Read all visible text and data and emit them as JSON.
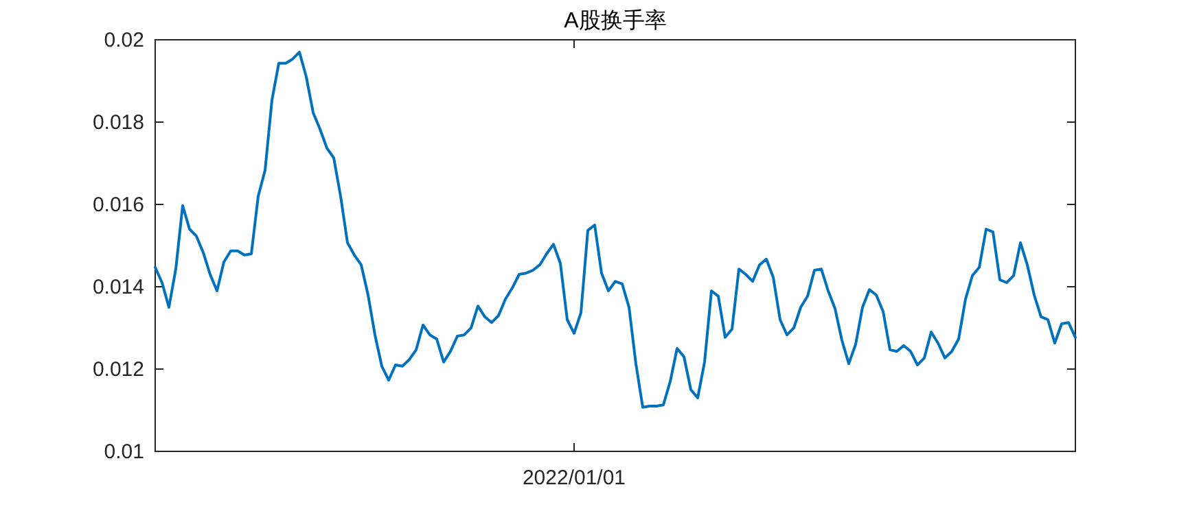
{
  "chart_data": {
    "type": "line",
    "title": "A股换手率",
    "categories": [
      null,
      null,
      null,
      null,
      null,
      null,
      null,
      null,
      null,
      null,
      null,
      null,
      null,
      null,
      null,
      null,
      null,
      null,
      null,
      null,
      null,
      null,
      null,
      null,
      null,
      null,
      null,
      null,
      null,
      null,
      null,
      null,
      null,
      null,
      null,
      null,
      null,
      null,
      null,
      null,
      null,
      null,
      null,
      null,
      null,
      null,
      null,
      null,
      null,
      null,
      null,
      null,
      null,
      null,
      null,
      null,
      null,
      null,
      null,
      null,
      null,
      "2022/01/01",
      null,
      null,
      null,
      null,
      null,
      null,
      null,
      null,
      null,
      null,
      null,
      null,
      null,
      null,
      null,
      null,
      null,
      null,
      null,
      null,
      null,
      null,
      null,
      null,
      null,
      null,
      null,
      null,
      null,
      null,
      null,
      null,
      null,
      null,
      null,
      null,
      null,
      null,
      null,
      null,
      null,
      null,
      null,
      null,
      null,
      null,
      null,
      null,
      null,
      null,
      null,
      null,
      null,
      null,
      null,
      null,
      null,
      null,
      null,
      null,
      null,
      null,
      null,
      null,
      null,
      null,
      null,
      null,
      null,
      null,
      null,
      null,
      null
    ],
    "series": [
      {
        "color": "#0072bd",
        "values": [
          0.01447,
          0.0141,
          0.0135,
          0.01443,
          0.01597,
          0.0154,
          0.01523,
          0.01483,
          0.0143,
          0.0139,
          0.0146,
          0.01487,
          0.01487,
          0.01477,
          0.0148,
          0.0162,
          0.01683,
          0.01853,
          0.01943,
          0.01943,
          0.01953,
          0.0197,
          0.0191,
          0.01823,
          0.01783,
          0.01737,
          0.01713,
          0.0162,
          0.01507,
          0.01477,
          0.01453,
          0.0138,
          0.01283,
          0.01207,
          0.01173,
          0.0121,
          0.01207,
          0.01223,
          0.01247,
          0.01307,
          0.01283,
          0.01273,
          0.01217,
          0.01243,
          0.0128,
          0.01283,
          0.013,
          0.01353,
          0.01327,
          0.01313,
          0.0133,
          0.0137,
          0.01397,
          0.0143,
          0.01433,
          0.0144,
          0.01453,
          0.0148,
          0.01503,
          0.01457,
          0.0132,
          0.01287,
          0.01337,
          0.01537,
          0.0155,
          0.01433,
          0.0139,
          0.01413,
          0.01407,
          0.0135,
          0.01213,
          0.01107,
          0.0111,
          0.0111,
          0.01113,
          0.0117,
          0.0125,
          0.0123,
          0.0115,
          0.0113,
          0.01217,
          0.0139,
          0.01377,
          0.01277,
          0.01297,
          0.01443,
          0.0143,
          0.01413,
          0.01453,
          0.01467,
          0.01423,
          0.0132,
          0.01283,
          0.013,
          0.0135,
          0.01377,
          0.0144,
          0.01443,
          0.0139,
          0.01347,
          0.0127,
          0.01213,
          0.0126,
          0.0135,
          0.01393,
          0.0138,
          0.0134,
          0.01247,
          0.01243,
          0.01257,
          0.01243,
          0.0121,
          0.01227,
          0.0129,
          0.01263,
          0.01227,
          0.01243,
          0.01273,
          0.0137,
          0.01427,
          0.01447,
          0.0154,
          0.01533,
          0.01417,
          0.0141,
          0.01427,
          0.01507,
          0.01453,
          0.0138,
          0.01327,
          0.0132,
          0.01263,
          0.0131,
          0.01313,
          0.01277
        ]
      }
    ],
    "ylim": [
      0.01,
      0.02
    ],
    "yticks": [
      0.01,
      0.012,
      0.014,
      0.016,
      0.018,
      0.02
    ]
  }
}
